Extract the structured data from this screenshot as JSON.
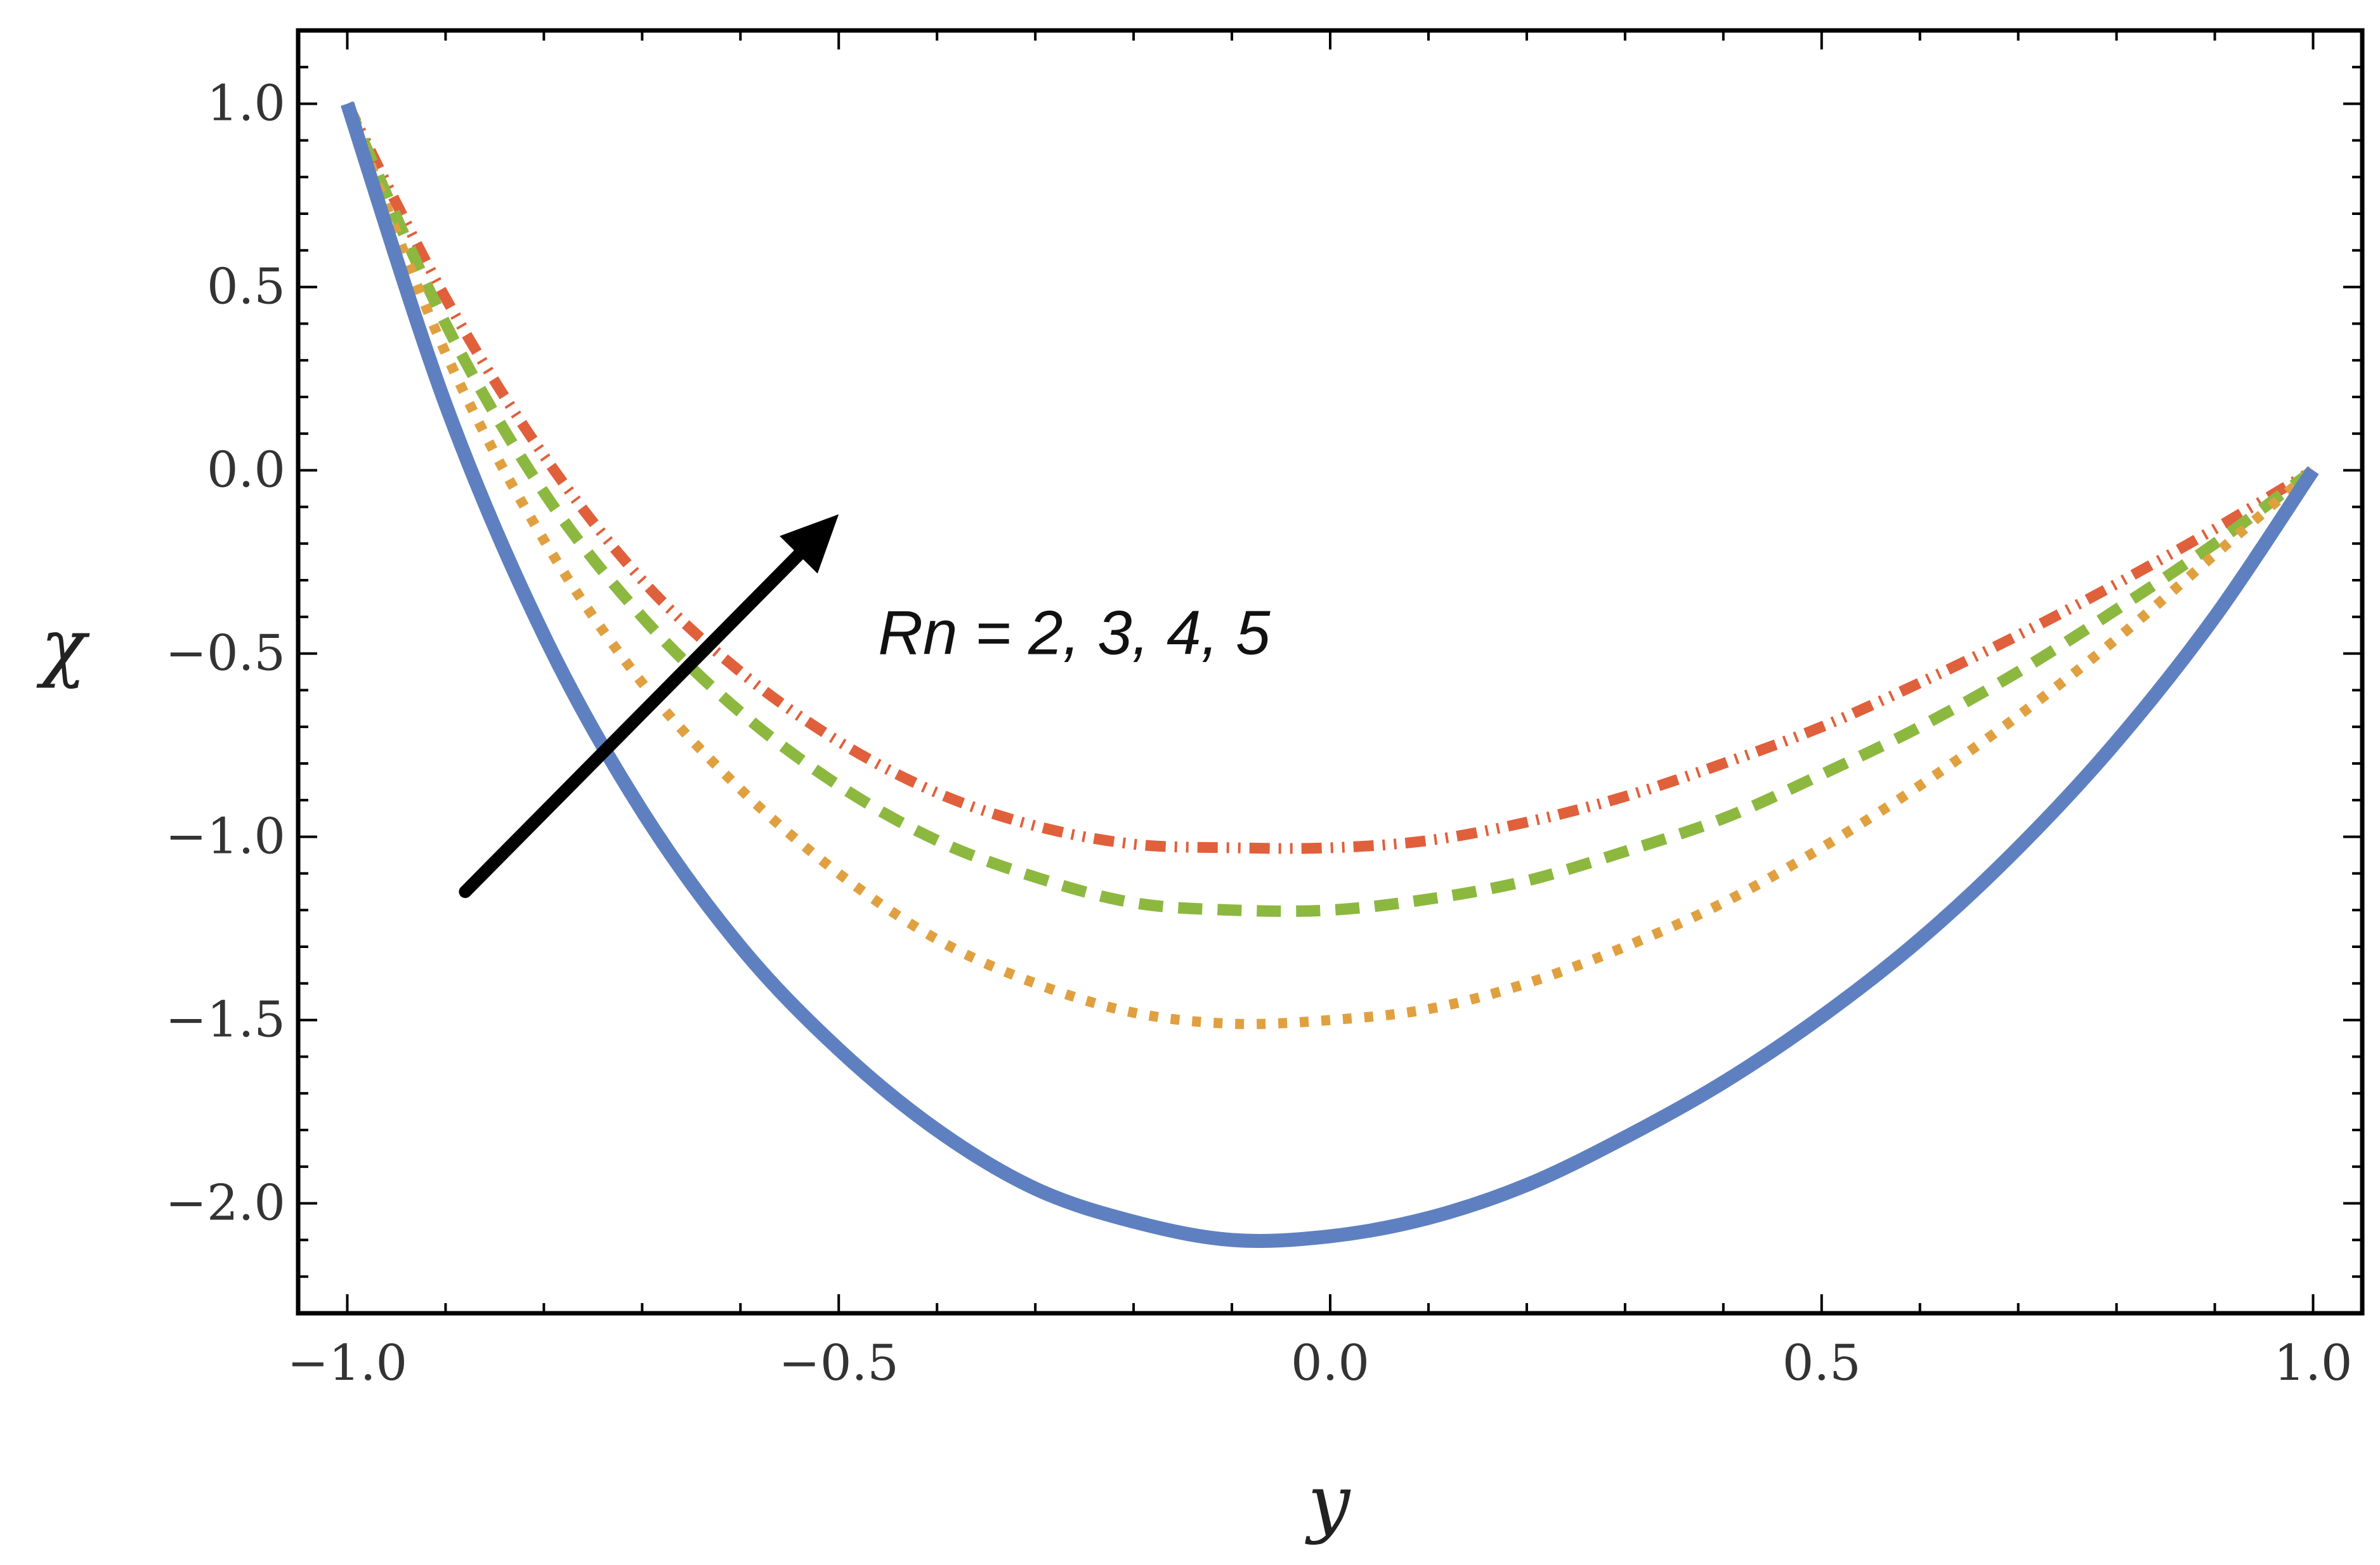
{
  "chart_data": {
    "type": "line",
    "title": "",
    "xlabel": "y",
    "ylabel": "χ",
    "xlim": [
      -1.05,
      1.05
    ],
    "ylim": [
      -2.3,
      1.2
    ],
    "grid": false,
    "x_ticks": [
      {
        "value": -1.0,
        "label": "−1.0"
      },
      {
        "value": -0.5,
        "label": "−0.5"
      },
      {
        "value": 0.0,
        "label": "0.0"
      },
      {
        "value": 0.5,
        "label": "0.5"
      },
      {
        "value": 1.0,
        "label": "1.0"
      }
    ],
    "y_ticks": [
      {
        "value": 1.0,
        "label": "1.0"
      },
      {
        "value": 0.5,
        "label": "0.5"
      },
      {
        "value": 0.0,
        "label": "0.0"
      },
      {
        "value": -0.5,
        "label": "−0.5"
      },
      {
        "value": -1.0,
        "label": "−1.0"
      },
      {
        "value": -1.5,
        "label": "−1.5"
      },
      {
        "value": -2.0,
        "label": "−2.0"
      }
    ],
    "annotation": {
      "text": "Rn = 2, 3, 4, 5",
      "arrow_from": [
        -0.88,
        -1.15
      ],
      "arrow_to": [
        -0.5,
        -0.12
      ],
      "text_anchor": [
        -0.46,
        -0.45
      ]
    },
    "series": [
      {
        "name": "Rn = 2",
        "color": "#5f80c0",
        "style": "solid",
        "x": [
          -1.0,
          -0.9,
          -0.8,
          -0.7,
          -0.6,
          -0.5,
          -0.4,
          -0.3,
          -0.2,
          -0.1,
          0.0,
          0.1,
          0.2,
          0.3,
          0.4,
          0.5,
          0.6,
          0.7,
          0.8,
          0.9,
          1.0
        ],
        "values": [
          1.0,
          0.18,
          -0.45,
          -0.93,
          -1.3,
          -1.58,
          -1.8,
          -1.96,
          -2.05,
          -2.1,
          -2.09,
          -2.04,
          -1.95,
          -1.82,
          -1.67,
          -1.49,
          -1.28,
          -1.03,
          -0.74,
          -0.4,
          0.0
        ]
      },
      {
        "name": "Rn = 3",
        "color": "#e0a040",
        "style": "dotted",
        "x": [
          -1.0,
          -0.9,
          -0.8,
          -0.7,
          -0.6,
          -0.5,
          -0.4,
          -0.3,
          -0.2,
          -0.1,
          0.0,
          0.1,
          0.2,
          0.3,
          0.4,
          0.5,
          0.6,
          0.7,
          0.8,
          0.9,
          1.0
        ],
        "values": [
          1.0,
          0.32,
          -0.19,
          -0.58,
          -0.87,
          -1.1,
          -1.28,
          -1.4,
          -1.48,
          -1.51,
          -1.5,
          -1.47,
          -1.4,
          -1.3,
          -1.18,
          -1.03,
          -0.86,
          -0.67,
          -0.46,
          -0.23,
          0.0
        ]
      },
      {
        "name": "Rn = 4",
        "color": "#8cb840",
        "style": "dashed",
        "x": [
          -1.0,
          -0.9,
          -0.8,
          -0.7,
          -0.6,
          -0.5,
          -0.4,
          -0.3,
          -0.2,
          -0.1,
          0.0,
          0.1,
          0.2,
          0.3,
          0.4,
          0.5,
          0.6,
          0.7,
          0.8,
          0.9,
          1.0
        ],
        "values": [
          1.0,
          0.4,
          -0.06,
          -0.4,
          -0.66,
          -0.86,
          -1.01,
          -1.11,
          -1.18,
          -1.2,
          -1.2,
          -1.17,
          -1.12,
          -1.04,
          -0.95,
          -0.83,
          -0.7,
          -0.55,
          -0.38,
          -0.2,
          0.0
        ]
      },
      {
        "name": "Rn = 5",
        "color": "#e0603c",
        "style": "dashdot",
        "x": [
          -1.0,
          -0.9,
          -0.8,
          -0.7,
          -0.6,
          -0.5,
          -0.4,
          -0.3,
          -0.2,
          -0.1,
          0.0,
          0.1,
          0.2,
          0.3,
          0.4,
          0.5,
          0.6,
          0.7,
          0.8,
          0.9,
          1.0
        ],
        "values": [
          1.0,
          0.47,
          0.04,
          -0.3,
          -0.55,
          -0.74,
          -0.88,
          -0.97,
          -1.02,
          -1.03,
          -1.03,
          -1.01,
          -0.96,
          -0.89,
          -0.8,
          -0.7,
          -0.58,
          -0.45,
          -0.31,
          -0.16,
          0.0
        ]
      }
    ]
  }
}
